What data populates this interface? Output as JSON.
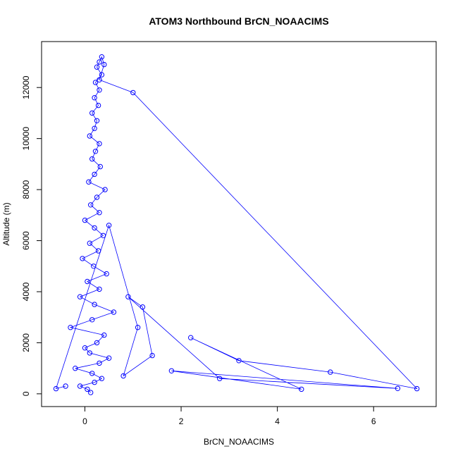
{
  "chart_data": {
    "type": "scatter",
    "title": "ATOM3 Northbound BrCN_NOAACIMS",
    "xlabel": "BrCN_NOAACIMS",
    "ylabel": "Altitude (m)",
    "xlim": [
      -0.9,
      7.3
    ],
    "ylim": [
      -500,
      13800
    ],
    "x_ticks": [
      0,
      2,
      4,
      6
    ],
    "x_tick_labels": [
      "0",
      "2",
      "4",
      "6"
    ],
    "y_ticks": [
      0,
      2000,
      4000,
      6000,
      8000,
      10000,
      12000
    ],
    "y_tick_labels": [
      "0",
      "2000",
      "4000",
      "6000",
      "8000",
      "10000",
      "12000"
    ],
    "grid": false,
    "legend": "none",
    "marker": "open-circle",
    "connected_lines": true,
    "series": [
      {
        "color": "#0000ff",
        "x": [
          0.12,
          0.05,
          -0.1,
          0.2,
          0.35,
          0.15,
          -0.2,
          0.3,
          0.5,
          0.1,
          0.0,
          0.25,
          0.4,
          -0.3,
          0.15,
          0.6,
          0.2,
          -0.1,
          0.3,
          0.05,
          0.45,
          0.18,
          -0.05,
          0.28,
          0.1,
          0.38,
          0.2,
          0.0,
          0.3,
          0.12,
          0.25,
          0.42,
          0.08,
          0.2,
          0.32,
          0.15,
          0.22,
          0.3,
          0.1,
          0.2,
          0.25,
          0.15,
          0.28,
          0.2,
          0.3,
          0.22,
          0.35,
          0.25,
          0.3,
          0.35,
          0.4,
          0.3,
          1.0,
          6.9,
          5.1,
          3.2,
          2.2,
          4.5,
          1.8,
          6.5,
          2.8,
          0.9,
          1.2,
          1.4,
          0.8,
          1.1,
          0.5,
          -0.6,
          -0.4
        ],
        "y": [
          50,
          180,
          300,
          450,
          600,
          800,
          1000,
          1200,
          1400,
          1600,
          1800,
          2000,
          2300,
          2600,
          2900,
          3200,
          3500,
          3800,
          4100,
          4400,
          4700,
          5000,
          5300,
          5600,
          5900,
          6200,
          6500,
          6800,
          7100,
          7400,
          7700,
          8000,
          8300,
          8600,
          8900,
          9200,
          9500,
          9800,
          10100,
          10400,
          10700,
          11000,
          11300,
          11600,
          11900,
          12200,
          12500,
          12800,
          13000,
          13200,
          12900,
          12300,
          11800,
          200,
          850,
          1300,
          2200,
          180,
          900,
          210,
          600,
          3800,
          3400,
          1500,
          700,
          2600,
          6600,
          200,
          300
        ]
      }
    ]
  }
}
